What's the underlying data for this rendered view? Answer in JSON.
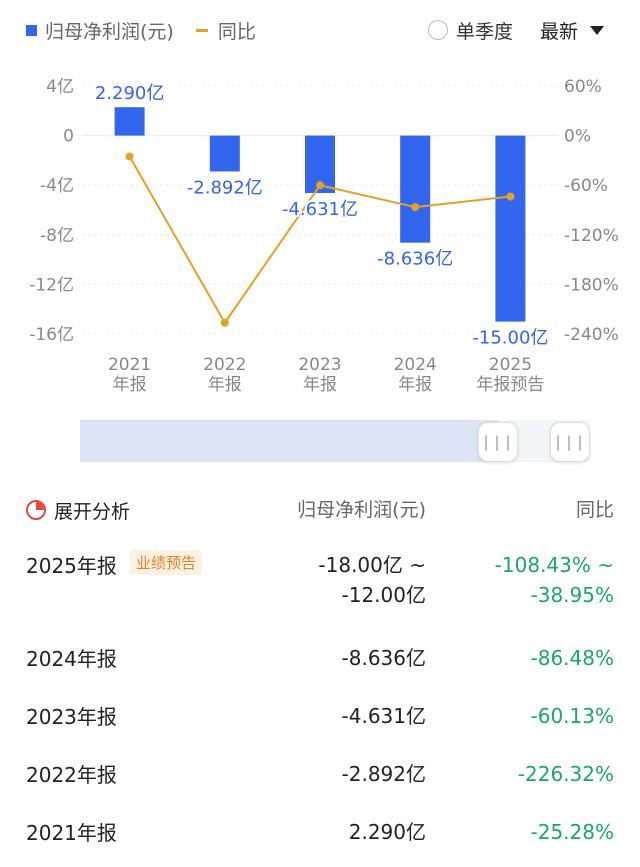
{
  "legend": {
    "bar_label": "归母净利润(元)",
    "line_label": "同比"
  },
  "controls": {
    "quarterly_label": "单季度",
    "latest_label": "最新"
  },
  "chart_data": {
    "type": "bar",
    "categories": [
      [
        "2021",
        "年报"
      ],
      [
        "2022",
        "年报"
      ],
      [
        "2023",
        "年报"
      ],
      [
        "2024",
        "年报"
      ],
      [
        "2025",
        "年报预告"
      ]
    ],
    "series": [
      {
        "name": "归母净利润(元)",
        "type": "bar",
        "color": "#3366ee",
        "values": [
          2.29,
          -2.892,
          -4.631,
          -8.636,
          -15.0
        ],
        "labels": [
          "2.290亿",
          "-2.892亿",
          "-4.631亿",
          "-8.636亿",
          "-15.00亿"
        ]
      },
      {
        "name": "同比",
        "type": "line",
        "color": "#e8a021",
        "axis": "right",
        "values": [
          -25.28,
          -226.32,
          -60.13,
          -86.48,
          -73.69
        ]
      }
    ],
    "y_left": {
      "ticks": [
        4,
        0,
        -4,
        -8,
        -12,
        -16
      ],
      "labels": [
        "4亿",
        "0",
        "-4亿",
        "-8亿",
        "-12亿",
        "-16亿"
      ],
      "range": [
        -16,
        4
      ]
    },
    "y_right": {
      "ticks": [
        60,
        0,
        -60,
        -120,
        -180,
        -240
      ],
      "labels": [
        "60%",
        "0%",
        "-60%",
        "-120%",
        "-180%",
        "-240%"
      ],
      "range": [
        -240,
        60
      ]
    },
    "grid": true
  },
  "slider": {
    "handle_glyph": "|||"
  },
  "table": {
    "header": {
      "analyze": "展开分析",
      "col_value": "归母净利润(元)",
      "col_yoy": "同比"
    },
    "rows": [
      {
        "period": "2025年报",
        "tag": "业绩预告",
        "value": [
          "-18.00亿 ~",
          "-12.00亿"
        ],
        "yoy": [
          "-108.43% ~",
          "-38.95%"
        ]
      },
      {
        "period": "2024年报",
        "value": [
          "-8.636亿"
        ],
        "yoy": [
          "-86.48%"
        ]
      },
      {
        "period": "2023年报",
        "value": [
          "-4.631亿"
        ],
        "yoy": [
          "-60.13%"
        ]
      },
      {
        "period": "2022年报",
        "value": [
          "-2.892亿"
        ],
        "yoy": [
          "-226.32%"
        ]
      },
      {
        "period": "2021年报",
        "value": [
          "2.290亿"
        ],
        "yoy": [
          "-25.28%"
        ]
      }
    ]
  }
}
